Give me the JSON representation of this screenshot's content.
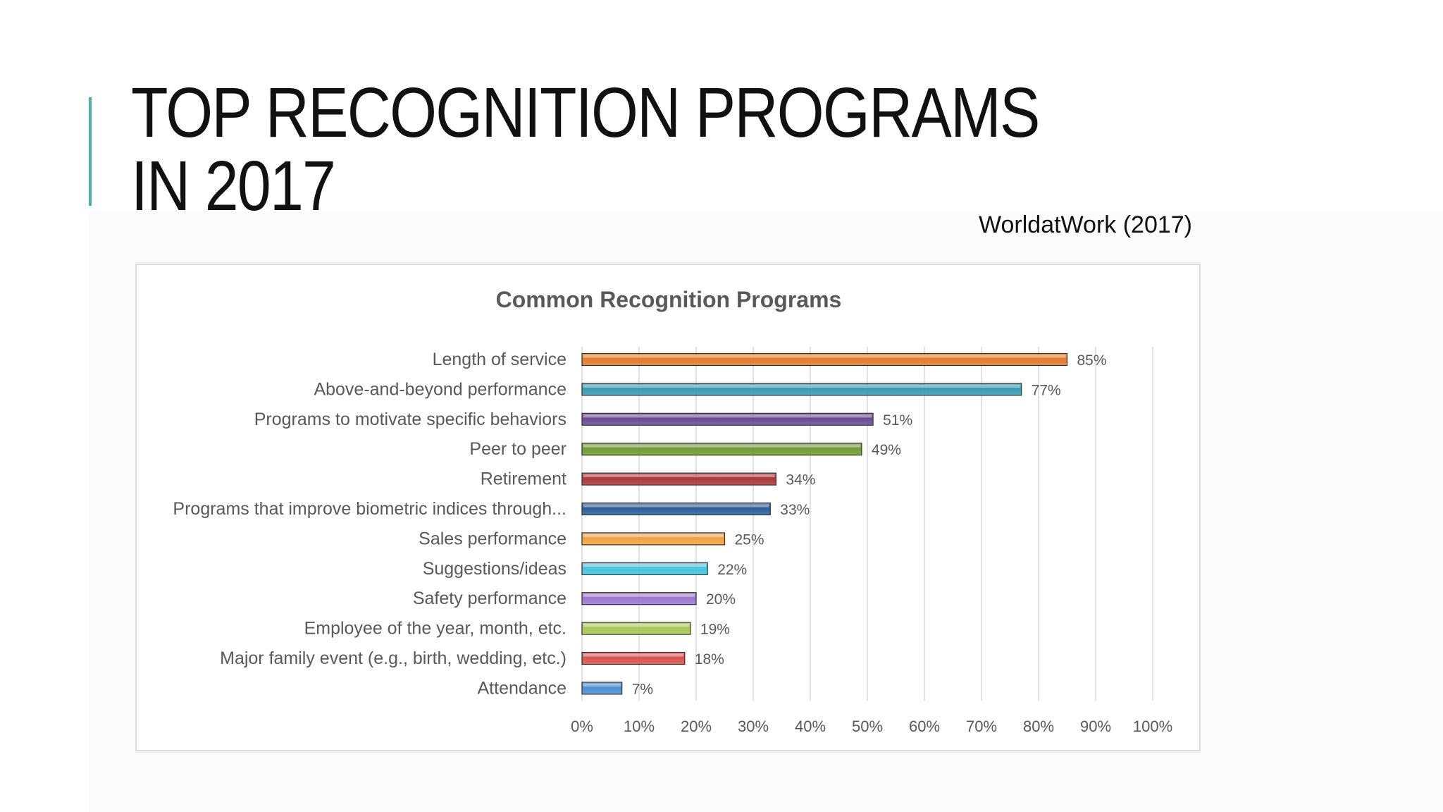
{
  "slide": {
    "title": "TOP RECOGNITION PROGRAMS IN 2017",
    "source": "WorldatWork (2017)",
    "accent_color": "#4fb0ae"
  },
  "chart_data": {
    "type": "bar",
    "orientation": "horizontal",
    "title": "Common Recognition Programs",
    "xlabel": "",
    "ylabel": "",
    "xlim": [
      0,
      100
    ],
    "x_ticks": [
      "0%",
      "10%",
      "20%",
      "30%",
      "40%",
      "50%",
      "60%",
      "70%",
      "80%",
      "90%",
      "100%"
    ],
    "grid": "vertical",
    "categories": [
      "Length of service",
      "Above-and-beyond performance",
      "Programs to motivate specific behaviors",
      "Peer to peer",
      "Retirement",
      "Programs that improve biometric indices through...",
      "Sales performance",
      "Suggestions/ideas",
      "Safety performance",
      "Employee of the year, month, etc.",
      "Major family event (e.g., birth, wedding, etc.)",
      "Attendance"
    ],
    "values": [
      85,
      77,
      51,
      49,
      34,
      33,
      25,
      22,
      20,
      19,
      18,
      7
    ],
    "data_labels": [
      "85%",
      "77%",
      "51%",
      "49%",
      "34%",
      "33%",
      "25%",
      "22%",
      "20%",
      "19%",
      "18%",
      "7%"
    ],
    "colors": [
      "#e37b2d",
      "#3a9bb1",
      "#6a4c93",
      "#6f9a3a",
      "#a8383b",
      "#2f5f9a",
      "#f0a242",
      "#48c2dc",
      "#9a78cf",
      "#a9c85a",
      "#d9534f",
      "#4d8fd1"
    ]
  }
}
